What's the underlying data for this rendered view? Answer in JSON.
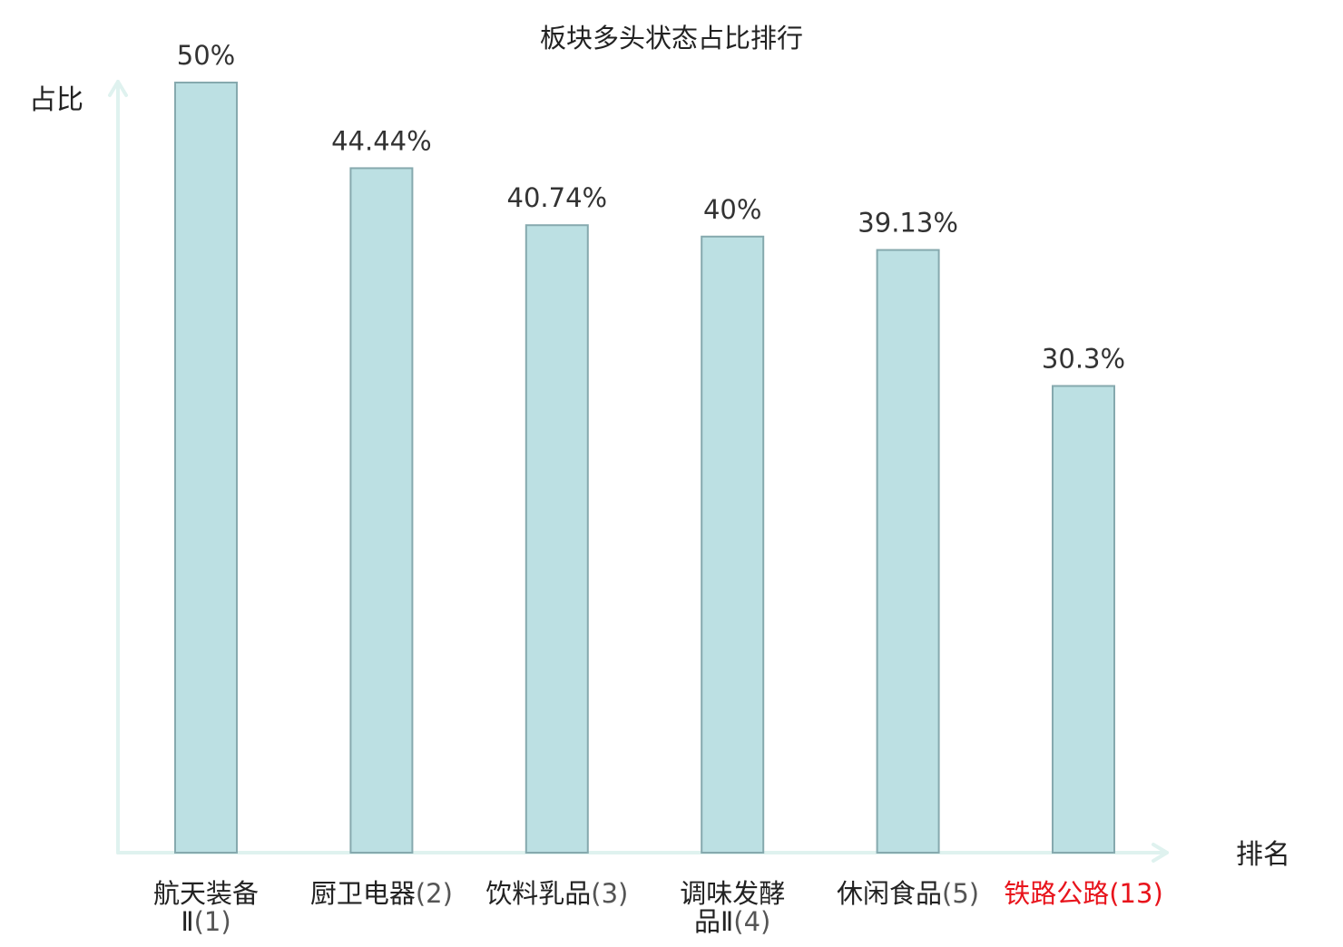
{
  "chart_data": {
    "type": "bar",
    "title": "板块多头状态占比排行",
    "ylabel": "占比",
    "xlabel": "排名",
    "categories": [
      {
        "name_lines": [
          "航天装备"
        ],
        "rank_line_prefix": "Ⅱ",
        "rank": "(1)",
        "two_line": true,
        "highlight": false
      },
      {
        "name_lines": [
          "厨卫电器"
        ],
        "rank_line_prefix": "",
        "rank": "(2)",
        "two_line": false,
        "highlight": false
      },
      {
        "name_lines": [
          "饮料乳品"
        ],
        "rank_line_prefix": "",
        "rank": "(3)",
        "two_line": false,
        "highlight": false
      },
      {
        "name_lines": [
          "调味发酵"
        ],
        "rank_line_prefix": "品Ⅱ",
        "rank": "(4)",
        "two_line": true,
        "highlight": false
      },
      {
        "name_lines": [
          "休闲食品"
        ],
        "rank_line_prefix": "",
        "rank": "(5)",
        "two_line": false,
        "highlight": false
      },
      {
        "name_lines": [
          "铁路公路"
        ],
        "rank_line_prefix": "",
        "rank": "(13)",
        "two_line": false,
        "highlight": true
      }
    ],
    "values": [
      50,
      44.44,
      40.74,
      40,
      39.13,
      30.3
    ],
    "value_labels": [
      "50%",
      "44.44%",
      "40.74%",
      "40%",
      "39.13%",
      "30.3%"
    ],
    "ylim": [
      0,
      50
    ],
    "grid": false,
    "colors": {
      "bar_fill": "#bce0e3",
      "bar_stroke": "#86a9ae",
      "axis": "#dff2ef",
      "text": "#333333",
      "label_text": "#222222",
      "rank_text": "#555555",
      "highlight": "#e8141c"
    }
  }
}
